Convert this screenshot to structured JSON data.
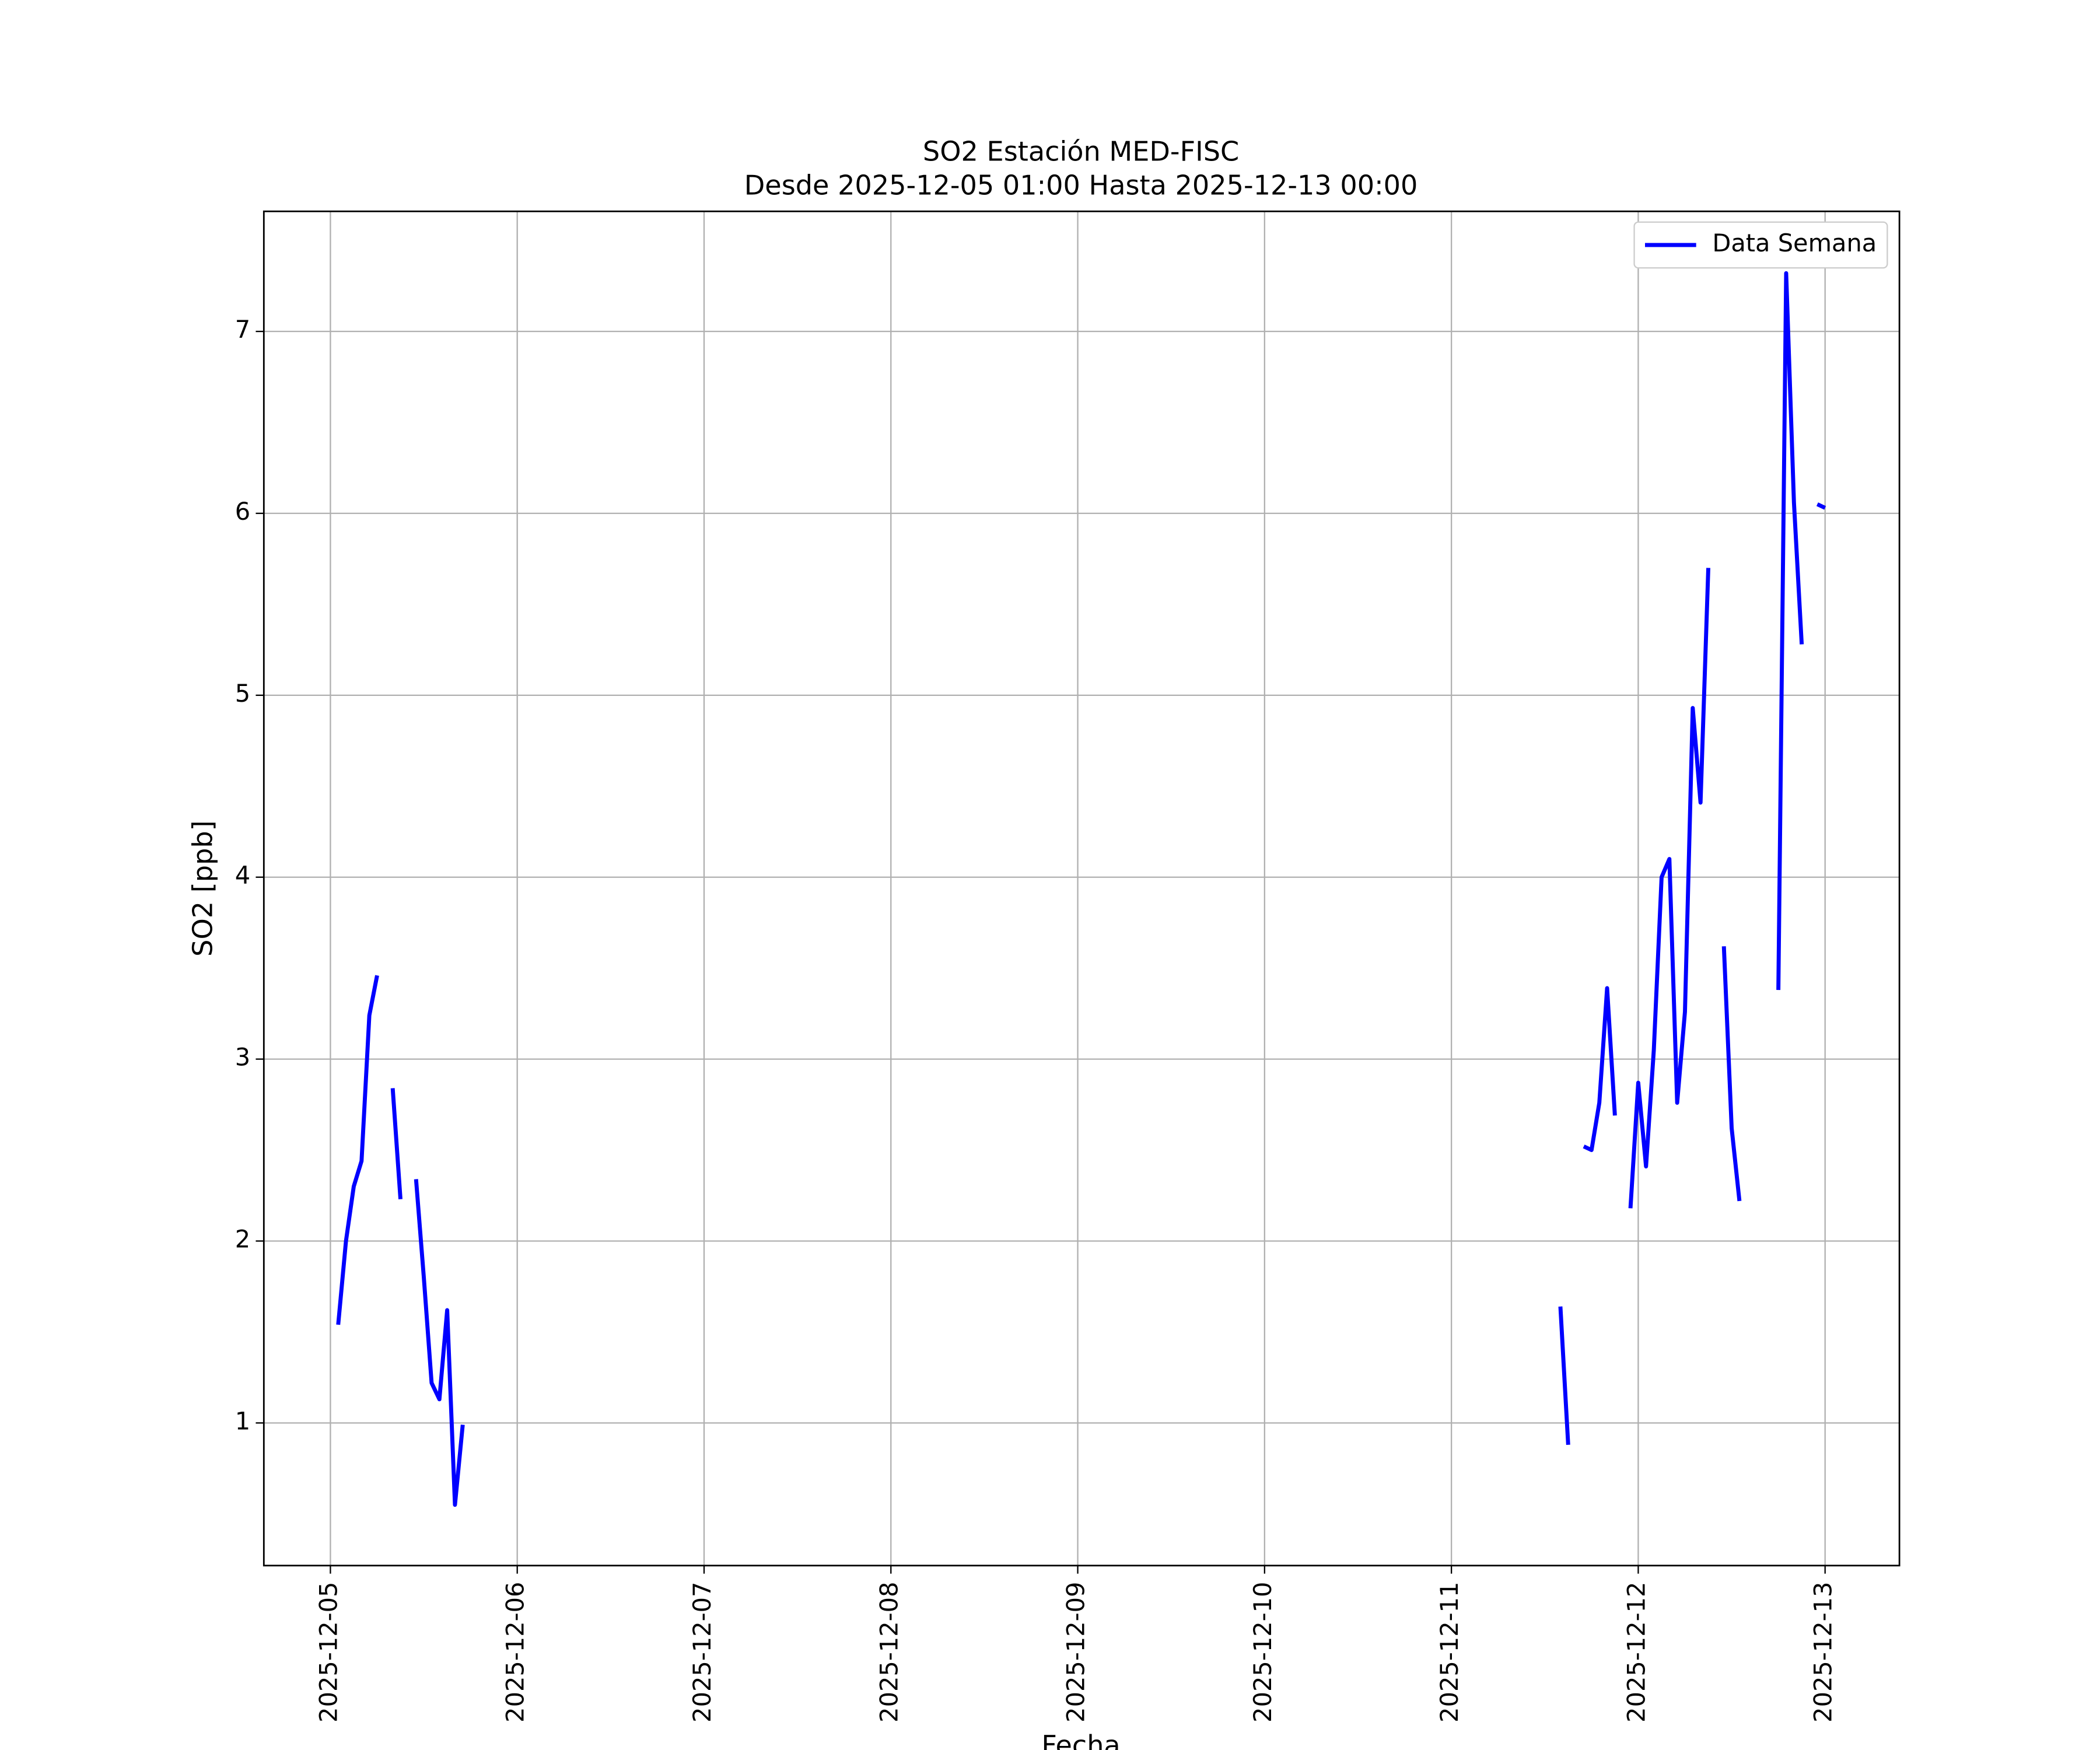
{
  "chart_data": {
    "type": "line",
    "title": "SO2 Estación MED-FISC",
    "subtitle": "Desde 2025-12-05 01:00 Hasta 2025-12-13 00:00",
    "x_label": "Fecha",
    "y_label": "SO2 [ppb]",
    "x": [
      "2025-12-05 01:00",
      "2025-12-05 02:00",
      "2025-12-05 03:00",
      "2025-12-05 04:00",
      "2025-12-05 05:00",
      "2025-12-05 06:00",
      "2025-12-05 07:00",
      "2025-12-05 08:00",
      "2025-12-05 09:00",
      "2025-12-05 10:00",
      "2025-12-05 11:00",
      "2025-12-05 12:00",
      "2025-12-05 13:00",
      "2025-12-05 14:00",
      "2025-12-05 15:00",
      "2025-12-05 16:00",
      "2025-12-05 17:00",
      "2025-12-05 18:00",
      "2025-12-11 14:00",
      "2025-12-11 15:00",
      "2025-12-11 16:00",
      "2025-12-11 17:00",
      "2025-12-11 18:00",
      "2025-12-11 19:00",
      "2025-12-11 20:00",
      "2025-12-11 21:00",
      "2025-12-11 22:00",
      "2025-12-11 23:00",
      "2025-12-12 00:00",
      "2025-12-12 01:00",
      "2025-12-12 02:00",
      "2025-12-12 03:00",
      "2025-12-12 04:00",
      "2025-12-12 05:00",
      "2025-12-12 06:00",
      "2025-12-12 07:00",
      "2025-12-12 08:00",
      "2025-12-12 09:00",
      "2025-12-12 10:00",
      "2025-12-12 11:00",
      "2025-12-12 12:00",
      "2025-12-12 13:00",
      "2025-12-12 14:00",
      "2025-12-12 18:00",
      "2025-12-12 19:00",
      "2025-12-12 20:00",
      "2025-12-12 21:00",
      "2025-12-12 22:00",
      "2025-12-12 23:00",
      "2025-12-13 00:00"
    ],
    "series": [
      {
        "name": "Data Semana",
        "color": "#0000ff",
        "values": [
          1.54,
          2.0,
          2.3,
          2.44,
          3.24,
          3.46,
          null,
          2.84,
          2.23,
          null,
          2.34,
          1.8,
          1.22,
          1.13,
          1.62,
          0.55,
          0.99,
          null,
          1.64,
          0.88,
          null,
          2.52,
          2.5,
          2.76,
          3.39,
          2.69,
          null,
          2.18,
          2.87,
          2.41,
          3.05,
          4.0,
          4.1,
          2.76,
          3.26,
          4.93,
          4.41,
          5.7,
          null,
          3.62,
          2.62,
          2.22,
          null,
          3.38,
          7.32,
          6.06,
          5.28,
          null,
          6.05,
          6.03
        ]
      }
    ],
    "xlim": [
      "2025-12-04 15:27",
      "2025-12-13 09:33"
    ],
    "xticks": [
      "2025-12-05",
      "2025-12-06",
      "2025-12-07",
      "2025-12-08",
      "2025-12-09",
      "2025-12-10",
      "2025-12-11",
      "2025-12-12",
      "2025-12-13"
    ],
    "ylim": [
      0.216,
      7.66
    ],
    "yticks": [
      1,
      2,
      3,
      4,
      5,
      6,
      7
    ],
    "grid": true,
    "legend": "upper right"
  }
}
